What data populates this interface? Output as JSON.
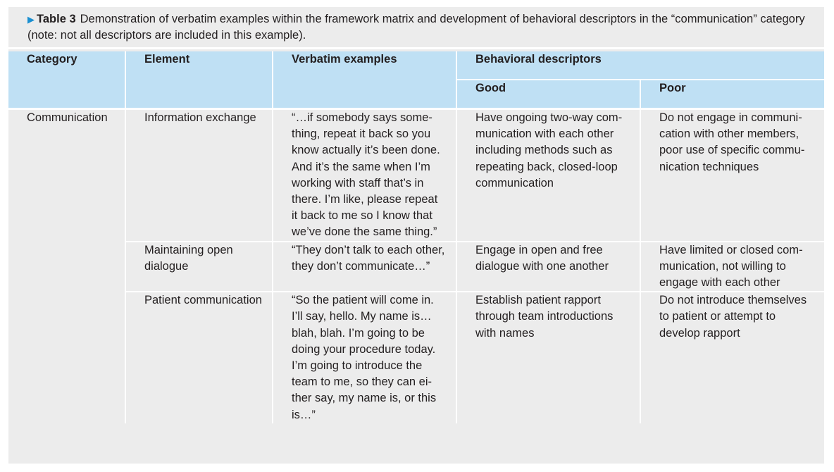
{
  "caption": {
    "label": "Table 3",
    "text": "Demonstration of verbatim examples within the framework matrix and development of behavioral descriptors in the “communication” category (note: not all descriptors are included in this example)."
  },
  "headers": {
    "category": "Category",
    "element": "Element",
    "verbatim": "Verbatim examples",
    "behavioral": "Behavioral descriptors",
    "good": "Good",
    "poor": "Poor"
  },
  "category": "Communication",
  "rows": [
    {
      "element": "Information exchange",
      "verbatim": "“…if somebody says some­thing, repeat it back so you know actually it’s been done. And it’s the same when I’m working with staff that’s in there. I’m like, please repeat it back to me so I know that we’ve done the same thing.”",
      "good": "Have ongoing two-way com­munication with each other including methods such as repeating back, closed-loop communication",
      "poor": "Do not engage in communi­cation with other members, poor use of specific commu­nication techniques"
    },
    {
      "element": "Maintaining open dialogue",
      "verbatim": "“They don’t talk to each other, they don’t commu­nicate…”",
      "good": "Engage in open and free dialo­gue with one another",
      "poor": "Have limited or closed com­munication, not willing to engage with each other"
    },
    {
      "element": "Patient communication",
      "verbatim": "“So the patient will come in. I’ll say, hello. My name is… blah, blah. I’m going to be doing your procedure today. I’m going to introduce the team to me, so they can ei­ther say, my name is, or this is…”",
      "good": "Establish patient rapport through team introductions with names",
      "poor": "Do not introduce themselves to patient or attempt to develop rapport"
    }
  ],
  "colors": {
    "header_bg": "#bfe0f4",
    "body_bg": "#ececec",
    "arrow": "#1a8fd1"
  }
}
